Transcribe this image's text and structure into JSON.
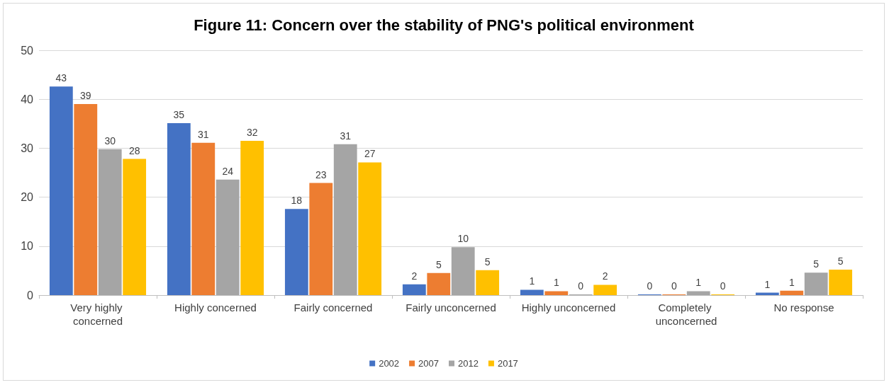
{
  "chart_data": {
    "type": "bar",
    "title": "Figure 11: Concern over the stability of PNG's political environment",
    "categories": [
      "Very highly concerned",
      "Highly concerned",
      "Fairly concerned",
      "Fairly unconcerned",
      "Highly unconcerned",
      "Completely unconcerned",
      "No response"
    ],
    "series": [
      {
        "name": "2002",
        "color": "#4472c4",
        "values": [
          42.6,
          35.1,
          17.6,
          2.2,
          1.1,
          0,
          0.5
        ],
        "value_labels": [
          "43",
          "35",
          "18",
          "2",
          "1",
          "0",
          "1"
        ]
      },
      {
        "name": "2007",
        "color": "#ed7d31",
        "values": [
          39,
          31.1,
          22.9,
          4.5,
          0.8,
          0,
          0.9
        ],
        "value_labels": [
          "39",
          "31",
          "23",
          "5",
          "1",
          "0",
          "1"
        ]
      },
      {
        "name": "2012",
        "color": "#a5a5a5",
        "values": [
          29.8,
          23.6,
          30.8,
          9.8,
          0,
          0.8,
          4.6
        ],
        "value_labels": [
          "30",
          "24",
          "31",
          "10",
          "0",
          "1",
          "5"
        ]
      },
      {
        "name": "2017",
        "color": "#ffc000",
        "values": [
          27.8,
          31.5,
          27.1,
          5.1,
          2.1,
          0,
          5.2
        ],
        "value_labels": [
          "28",
          "32",
          "27",
          "5",
          "2",
          "0",
          "5"
        ]
      }
    ],
    "ylim": [
      0,
      50
    ],
    "yticks": [
      0,
      10,
      20,
      30,
      40,
      50
    ],
    "grid": "y",
    "legend": "bottom"
  }
}
